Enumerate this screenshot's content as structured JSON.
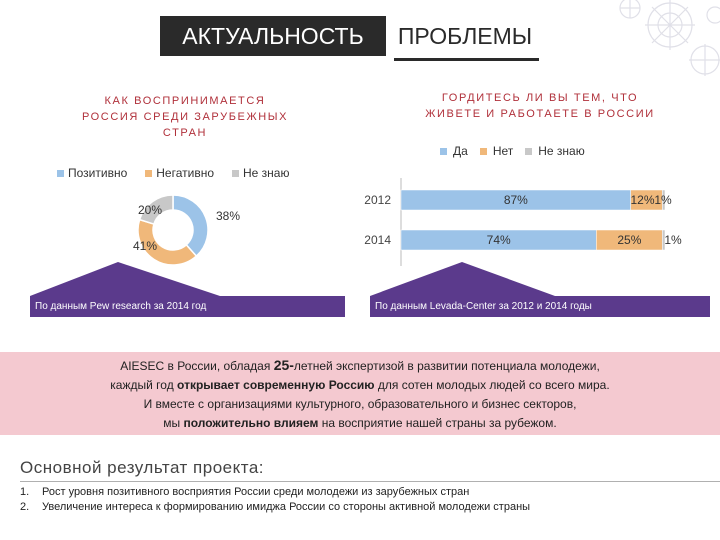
{
  "header": {
    "title_left": "АКТУАЛЬНОСТЬ",
    "title_right": "ПРОБЛЕМЫ"
  },
  "left_panel": {
    "question": [
      "КАК ВОСПРИНИМАЕТСЯ",
      "РОССИЯ СРЕДИ ЗАРУБЕЖНЫХ",
      "СТРАН"
    ],
    "legend": [
      {
        "label": "Позитивно",
        "color": "#9cc3e8"
      },
      {
        "label": "Негативно",
        "color": "#f0b87a"
      },
      {
        "label": "Не знаю",
        "color": "#c8c8c8"
      }
    ],
    "source": "По данным Pew research за 2014 год"
  },
  "right_panel": {
    "question": [
      "ГОРДИТЕСЬ ЛИ ВЫ ТЕМ, ЧТО",
      "ЖИВЕТЕ И РАБОТАЕТЕ В РОССИИ"
    ],
    "legend": [
      {
        "label": "Да",
        "color": "#9cc3e8"
      },
      {
        "label": "Нет",
        "color": "#f0b87a"
      },
      {
        "label": "Не знаю",
        "color": "#c8c8c8"
      }
    ],
    "source": "По данным Levada-Center за 2012 и 2014 годы"
  },
  "chart_data": [
    {
      "type": "pie",
      "categories": [
        "Позитивно",
        "Негативно",
        "Не знаю"
      ],
      "values": [
        38,
        41,
        20
      ],
      "labels": [
        "38%",
        "41%",
        "20%"
      ],
      "colors": [
        "#9cc3e8",
        "#f0b87a",
        "#c8c8c8"
      ],
      "legend_position": "top"
    },
    {
      "type": "bar",
      "orientation": "horizontal",
      "stacked": true,
      "categories": [
        "2012",
        "2014"
      ],
      "series": [
        {
          "name": "Да",
          "values": [
            87,
            74
          ],
          "labels": [
            "87%",
            "74%"
          ],
          "color": "#9cc3e8"
        },
        {
          "name": "Нет",
          "values": [
            12,
            25
          ],
          "labels": [
            "12%",
            "25%"
          ],
          "color": "#f0b87a"
        },
        {
          "name": "Не знаю",
          "values": [
            1,
            1
          ],
          "labels": [
            "1%",
            "1%"
          ],
          "color": "#c8c8c8"
        }
      ],
      "xlim": [
        0,
        100
      ],
      "legend_position": "top"
    }
  ],
  "info_band": {
    "line1_pre": "AIESEC в России, обладая ",
    "line1_bold": "25-",
    "line1_post": "летней экспертизой в развитии потенциала молодежи,",
    "line2_pre": "каждый год ",
    "line2_bold": "открывает современную Россию",
    "line2_post": " для сотен молодых людей со всего мира.",
    "line3": "И вместе с организациями культурного, образовательного и бизнес секторов,",
    "line4_pre": "мы ",
    "line4_bold": "положительно влияем",
    "line4_post": " на восприятие нашей страны за рубежом."
  },
  "result": {
    "title": "Основной результат проекта:",
    "items": [
      {
        "num": "1.",
        "text": "Рост уровня позитивного восприятия России среди молодежи из зарубежных стран"
      },
      {
        "num": "2.",
        "text": "Увеличение интереса к формированию имиджа России со стороны активной молодежи страны"
      }
    ]
  }
}
